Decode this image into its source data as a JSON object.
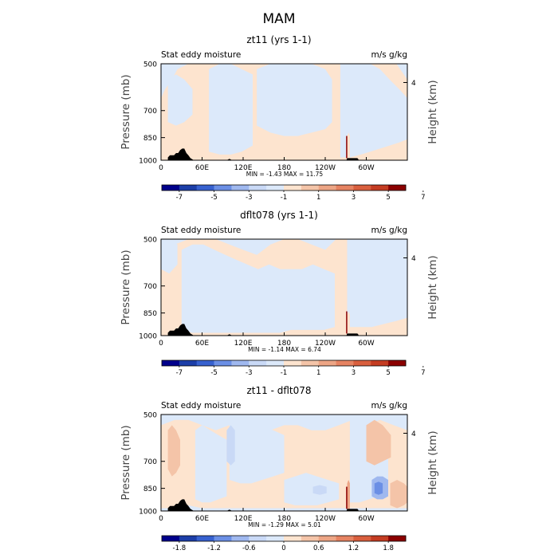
{
  "figure_title": "MAM",
  "chart_data": [
    {
      "type": "heatmap",
      "title": "zt11 (yrs 1-1)",
      "left_label": "Stat eddy moisture",
      "right_label": "m/s g/kg",
      "ylabel": "Pressure (mb)",
      "ylabel_right": "Height (km)",
      "yticks": [
        "500",
        "700",
        "850",
        "1000"
      ],
      "ytick_values": [
        500,
        700,
        850,
        1000
      ],
      "yticks_right": [
        "4"
      ],
      "ytick_right_values": [
        4
      ],
      "xticks": [
        "0",
        "60E",
        "120E",
        "180",
        "120W",
        "60W"
      ],
      "xtick_values": [
        0,
        60,
        120,
        180,
        240,
        300
      ],
      "xlim": [
        0,
        360
      ],
      "ylim": [
        1000,
        500
      ],
      "stats": "MIN =   -1.43   MAX =   11.75",
      "min": -1.43,
      "max": 11.75,
      "colorbar_ticks": [
        "-7",
        "-5",
        "-3",
        "-1",
        "1",
        "3",
        "5",
        "7"
      ],
      "colorbar_range": [
        -8,
        8
      ],
      "contours": [
        {
          "value": 0.5,
          "lon": [
            0,
            6,
            16,
            24,
            40,
            56,
            72,
            88,
            104,
            120,
            136,
            152,
            168,
            184,
            200,
            216,
            232,
            248,
            258,
            272,
            288,
            304,
            312,
            328,
            344,
            360
          ],
          "top": [
            640,
            600,
            560,
            520,
            500,
            500,
            500,
            500,
            500,
            500,
            500,
            500,
            500,
            500,
            500,
            500,
            500,
            500,
            500,
            500,
            500,
            500,
            500,
            500,
            500,
            560
          ],
          "bottom": [
            1000,
            1000,
            1000,
            1000,
            1000,
            1000,
            1000,
            1000,
            1000,
            1000,
            1000,
            1000,
            1000,
            1000,
            1000,
            1000,
            1000,
            1000,
            1000,
            1000,
            1000,
            1000,
            1000,
            1000,
            1000,
            1000
          ]
        },
        {
          "value": -0.5,
          "lon": [
            10,
            22,
            34,
            46
          ],
          "top": [
            560,
            540,
            560,
            600
          ],
          "bottom": [
            760,
            780,
            760,
            720
          ]
        },
        {
          "value": -0.5,
          "lon": [
            70,
            86,
            102,
            118,
            134
          ],
          "top": [
            520,
            500,
            500,
            520,
            540
          ],
          "bottom": [
            940,
            960,
            960,
            940,
            900
          ]
        },
        {
          "value": -0.5,
          "lon": [
            140,
            160,
            180,
            200,
            220,
            240,
            250
          ],
          "top": [
            520,
            500,
            500,
            500,
            500,
            520,
            560
          ],
          "bottom": [
            780,
            820,
            840,
            840,
            820,
            800,
            760
          ]
        },
        {
          "value": -0.5,
          "lon": [
            262,
            276,
            292,
            306,
            320,
            334,
            348,
            360
          ],
          "top": [
            500,
            500,
            500,
            500,
            520,
            560,
            600,
            640
          ],
          "bottom": [
            980,
            980,
            960,
            940,
            920,
            900,
            880,
            860
          ]
        },
        {
          "value": 1.0,
          "lon": [
            0,
            6,
            12
          ],
          "top": [
            860,
            850,
            860
          ],
          "bottom": [
            960,
            970,
            960
          ]
        },
        {
          "value": 1.0,
          "lon": [
            272,
            274,
            276
          ],
          "top": [
            840,
            820,
            840
          ],
          "bottom": [
            990,
            995,
            990
          ]
        }
      ]
    },
    {
      "type": "heatmap",
      "title": "dflt078 (yrs 1-1)",
      "left_label": "Stat eddy moisture",
      "right_label": "m/s g/kg",
      "ylabel": "Pressure (mb)",
      "ylabel_right": "Height (km)",
      "yticks": [
        "500",
        "700",
        "850",
        "1000"
      ],
      "ytick_values": [
        500,
        700,
        850,
        1000
      ],
      "yticks_right": [
        "4"
      ],
      "ytick_right_values": [
        4
      ],
      "xticks": [
        "0",
        "60E",
        "120E",
        "180",
        "120W",
        "60W"
      ],
      "xtick_values": [
        0,
        60,
        120,
        180,
        240,
        300
      ],
      "xlim": [
        0,
        360
      ],
      "ylim": [
        1000,
        500
      ],
      "stats": "MIN =   -1.14   MAX =    6.74",
      "min": -1.14,
      "max": 6.74,
      "colorbar_ticks": [
        "-7",
        "-5",
        "-3",
        "-1",
        "1",
        "3",
        "5",
        "7"
      ],
      "colorbar_range": [
        -8,
        8
      ],
      "contours": [
        {
          "value": 0.5,
          "lon": [
            0,
            8,
            20,
            40,
            60,
            80,
            100,
            120,
            140,
            160,
            180,
            200,
            220,
            240,
            256,
            270,
            286,
            300,
            316,
            332,
            346,
            360
          ],
          "top": [
            620,
            560,
            520,
            500,
            500,
            500,
            520,
            540,
            560,
            520,
            500,
            500,
            520,
            540,
            500,
            500,
            500,
            520,
            560,
            620,
            660,
            700
          ],
          "bottom": [
            1000,
            1000,
            1000,
            1000,
            1000,
            1000,
            1000,
            1000,
            1000,
            1000,
            1000,
            1000,
            1000,
            1000,
            1000,
            1000,
            1000,
            1000,
            1000,
            1000,
            1000,
            1000
          ]
        },
        {
          "value": -0.5,
          "lon": [
            0,
            12,
            24
          ],
          "top": [
            500,
            500,
            520
          ],
          "bottom": [
            620,
            640,
            600
          ]
        },
        {
          "value": -0.5,
          "lon": [
            30,
            46,
            62,
            78,
            94,
            110,
            126,
            142,
            158,
            174,
            190,
            206,
            222,
            238,
            254
          ],
          "top": [
            540,
            520,
            520,
            540,
            560,
            580,
            600,
            620,
            600,
            620,
            620,
            620,
            600,
            620,
            640
          ],
          "bottom": [
            960,
            980,
            980,
            980,
            980,
            980,
            980,
            980,
            980,
            980,
            960,
            960,
            960,
            960,
            940
          ]
        },
        {
          "value": -0.5,
          "lon": [
            272,
            290,
            308,
            326,
            344,
            360
          ],
          "top": [
            500,
            500,
            500,
            500,
            500,
            500
          ],
          "bottom": [
            940,
            940,
            940,
            920,
            900,
            880
          ]
        },
        {
          "value": 1.0,
          "lon": [
            272,
            274,
            276
          ],
          "top": [
            860,
            840,
            860
          ],
          "bottom": [
            990,
            995,
            990
          ]
        }
      ]
    },
    {
      "type": "heatmap",
      "title": "zt11 - dflt078",
      "left_label": "Stat eddy moisture",
      "right_label": "m/s g/kg",
      "ylabel": "Pressure (mb)",
      "ylabel_right": "Height (km)",
      "yticks": [
        "500",
        "700",
        "850",
        "1000"
      ],
      "ytick_values": [
        500,
        700,
        850,
        1000
      ],
      "yticks_right": [
        "4"
      ],
      "ytick_right_values": [
        4
      ],
      "xticks": [
        "0",
        "60E",
        "120E",
        "180",
        "120W",
        "60W"
      ],
      "xtick_values": [
        0,
        60,
        120,
        180,
        240,
        300
      ],
      "xlim": [
        0,
        360
      ],
      "ylim": [
        1000,
        500
      ],
      "stats": "MIN =   -1.29   MAX =    5.01",
      "min": -1.29,
      "max": 5.01,
      "colorbar_ticks": [
        "-1.8",
        "-1.2",
        "-0.6",
        "0",
        "0.6",
        "1.2",
        "1.8"
      ],
      "colorbar_range": [
        -2.1,
        2.1
      ],
      "contours": [
        {
          "value": 0.15,
          "lon": [
            0,
            20,
            40,
            60,
            80,
            100,
            120,
            140,
            160,
            180,
            200,
            220,
            240,
            260,
            280,
            300,
            320,
            340,
            360
          ],
          "top": [
            540,
            520,
            520,
            540,
            560,
            540,
            520,
            540,
            560,
            540,
            540,
            560,
            560,
            540,
            520,
            540,
            520,
            540,
            560
          ],
          "bottom": [
            980,
            980,
            960,
            980,
            980,
            980,
            980,
            980,
            980,
            980,
            980,
            980,
            980,
            980,
            980,
            980,
            980,
            980,
            980
          ]
        },
        {
          "value": -0.15,
          "lon": [
            50,
            60,
            72,
            84,
            96
          ],
          "top": [
            560,
            540,
            560,
            580,
            600
          ],
          "bottom": [
            920,
            940,
            940,
            920,
            900
          ]
        },
        {
          "value": -0.15,
          "lon": [
            100,
            116,
            132,
            148,
            164,
            180
          ],
          "top": [
            540,
            520,
            520,
            540,
            560,
            580
          ],
          "bottom": [
            800,
            820,
            820,
            800,
            780,
            760
          ]
        },
        {
          "value": -0.15,
          "lon": [
            180,
            196,
            212,
            228,
            244,
            260
          ],
          "top": [
            800,
            780,
            760,
            780,
            800,
            820
          ],
          "bottom": [
            940,
            960,
            960,
            960,
            940,
            920
          ]
        },
        {
          "value": -0.15,
          "lon": [
            276,
            290,
            304,
            318,
            332
          ],
          "top": [
            500,
            500,
            520,
            560,
            620
          ],
          "bottom": [
            940,
            940,
            920,
            900,
            880
          ]
        },
        {
          "value": 0.45,
          "lon": [
            10,
            16,
            22,
            28
          ],
          "top": [
            560,
            540,
            560,
            600
          ],
          "bottom": [
            740,
            780,
            760,
            720
          ]
        },
        {
          "value": 0.45,
          "lon": [
            300,
            312,
            324,
            336
          ],
          "top": [
            540,
            520,
            540,
            580
          ],
          "bottom": [
            700,
            720,
            700,
            680
          ]
        },
        {
          "value": 0.45,
          "lon": [
            335,
            345,
            355,
            360
          ],
          "top": [
            820,
            800,
            820,
            840
          ],
          "bottom": [
            960,
            980,
            960,
            940
          ]
        },
        {
          "value": -0.45,
          "lon": [
            96,
            102,
            108
          ],
          "top": [
            560,
            540,
            560
          ],
          "bottom": [
            700,
            720,
            700
          ]
        },
        {
          "value": -0.45,
          "lon": [
            222,
            232,
            242
          ],
          "top": [
            840,
            830,
            840
          ],
          "bottom": [
            880,
            890,
            880
          ]
        },
        {
          "value": -0.75,
          "lon": [
            308,
            316,
            324,
            332
          ],
          "top": [
            800,
            780,
            780,
            800
          ],
          "bottom": [
            900,
            920,
            920,
            900
          ]
        },
        {
          "value": -1.05,
          "lon": [
            312,
            318,
            324
          ],
          "top": [
            820,
            810,
            820
          ],
          "bottom": [
            880,
            890,
            880
          ]
        },
        {
          "value": 0.75,
          "lon": [
            272,
            274,
            276
          ],
          "top": [
            820,
            800,
            820
          ],
          "bottom": [
            990,
            995,
            990
          ]
        }
      ]
    }
  ],
  "terrain": {
    "lon": [
      10,
      13,
      16,
      19,
      22,
      25,
      28,
      31,
      34,
      37,
      40,
      43,
      48,
      52,
      56,
      60,
      64,
      68,
      72,
      76,
      80,
      84,
      88,
      92,
      96,
      100,
      104,
      108,
      112,
      116,
      120,
      124,
      128,
      132,
      136,
      140,
      144,
      148,
      152,
      156,
      160,
      164,
      168,
      172,
      176,
      180,
      184,
      188,
      192,
      196,
      200,
      204,
      208,
      212,
      216,
      220,
      224,
      228,
      232,
      236,
      240,
      244,
      248,
      252,
      256,
      260,
      264,
      268,
      270,
      271,
      272,
      273,
      274,
      275,
      276,
      277,
      278,
      279,
      280,
      281,
      282,
      283,
      284,
      285,
      286,
      287,
      288,
      289,
      290,
      291,
      292
    ],
    "surface_pressure": [
      980,
      965,
      965,
      965,
      950,
      950,
      930,
      920,
      920,
      950,
      965,
      985,
      1000,
      1000,
      1000,
      1000,
      1000,
      1000,
      1000,
      1000,
      1000,
      1000,
      1000,
      1000,
      1000,
      990,
      1000,
      1000,
      1000,
      1000,
      1000,
      1000,
      1000,
      1000,
      1000,
      1000,
      1000,
      1000,
      1000,
      1000,
      1000,
      1000,
      1000,
      1000,
      1000,
      1000,
      1000,
      1000,
      1000,
      1000,
      1000,
      1000,
      1000,
      1000,
      1000,
      1000,
      1000,
      1000,
      1000,
      1000,
      1000,
      1000,
      1000,
      1000,
      1000,
      1000,
      1000,
      1000,
      1000,
      1000,
      985,
      985,
      985,
      985,
      985,
      985,
      985,
      985,
      985,
      985,
      985,
      985,
      985,
      985,
      985,
      985,
      990,
      1000,
      1000,
      1000,
      1000
    ]
  },
  "colors": {
    "diverging": [
      "#00008b",
      "#1c3ea8",
      "#3761cf",
      "#6b8fe5",
      "#9fb8ef",
      "#c9d9f6",
      "#dce9fa",
      "#fde4cf",
      "#f4c4a8",
      "#eda585",
      "#e68362",
      "#d95f3e",
      "#c43c22",
      "#8b0000"
    ],
    "frame": "#000000"
  }
}
